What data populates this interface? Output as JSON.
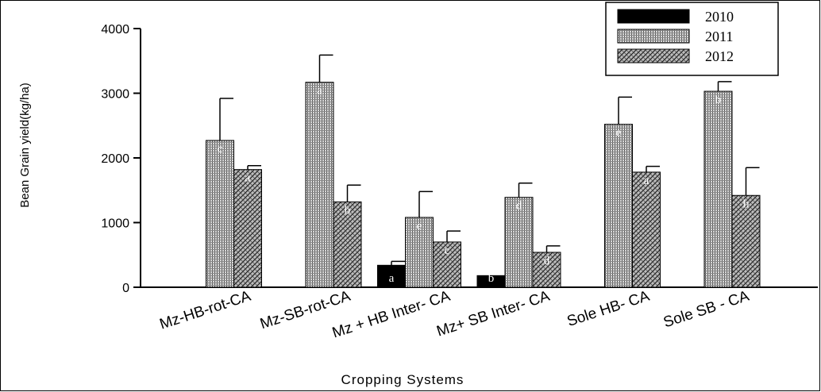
{
  "chart_data": {
    "type": "bar",
    "xlabel": "Cropping Systems",
    "ylabel": "Bean Grain yield(kg/ha)",
    "ylim": [
      0,
      4000
    ],
    "yticks": [
      0,
      1000,
      2000,
      3000,
      4000
    ],
    "categories": [
      "Mz-HB-rot-CA",
      "Mz-SB-rot-CA",
      "Mz + HB Inter- CA",
      "Mz+ SB Inter- CA",
      "Sole HB- CA",
      "Sole SB - CA"
    ],
    "legend_position": "top-right",
    "series": [
      {
        "name": "2010",
        "values": [
          null,
          null,
          340,
          180,
          null,
          null
        ],
        "errors": [
          null,
          null,
          60,
          0,
          null,
          null
        ],
        "letters": [
          "",
          "",
          "a",
          "b",
          "",
          ""
        ]
      },
      {
        "name": "2011",
        "values": [
          2270,
          3170,
          1080,
          1390,
          2520,
          3030
        ],
        "errors": [
          650,
          420,
          400,
          220,
          420,
          150
        ],
        "letters": [
          "c",
          "a",
          "e",
          "d",
          "e",
          "b"
        ]
      },
      {
        "name": "2012",
        "values": [
          1820,
          1320,
          700,
          540,
          1780,
          1420
        ],
        "errors": [
          60,
          260,
          170,
          100,
          90,
          430
        ],
        "letters": [
          "a",
          "b",
          "c",
          "d",
          "a",
          "b"
        ]
      }
    ]
  }
}
